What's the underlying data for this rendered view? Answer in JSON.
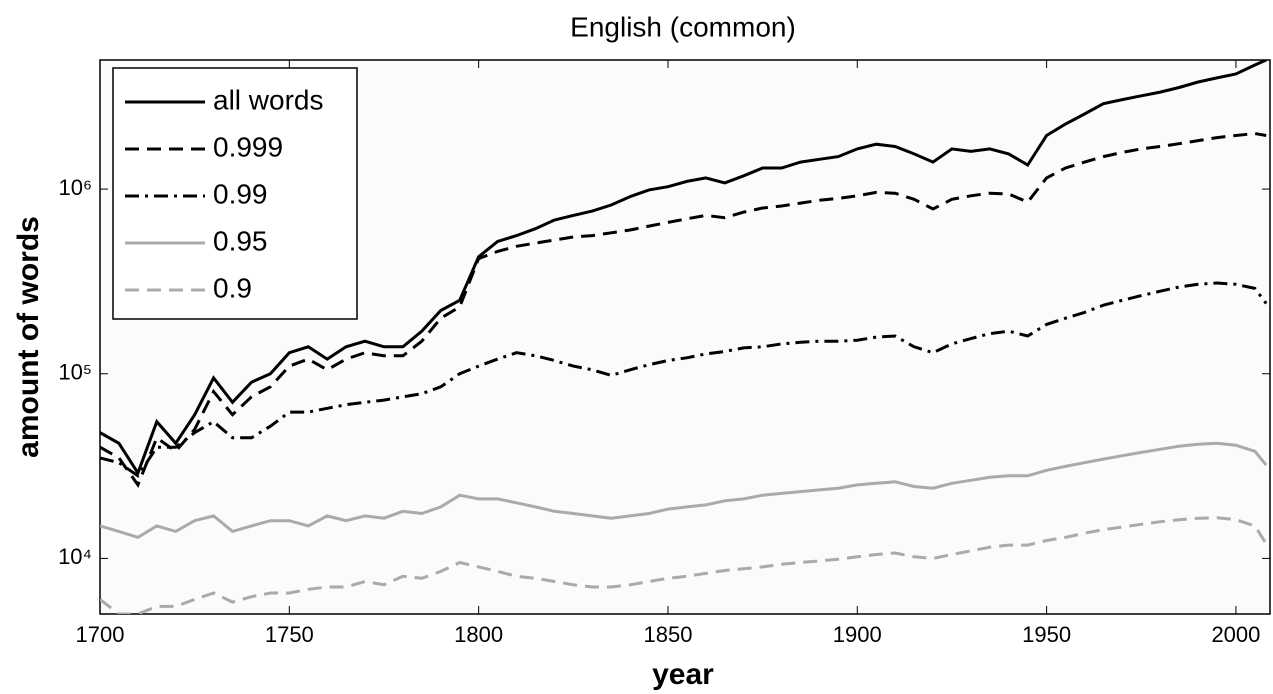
{
  "chart_data": {
    "type": "line",
    "title": "English (common)",
    "x_label": "year",
    "y_label": "amount of words",
    "log_y": true,
    "grid": false,
    "legend_position": "upper left",
    "xlim": [
      1700,
      2009
    ],
    "xticks": [
      1700,
      1750,
      1800,
      1850,
      1900,
      1950,
      2000
    ],
    "ylim": [
      5000,
      5000000
    ],
    "yticks": [
      {
        "value": 10000,
        "label": "10⁴"
      },
      {
        "value": 100000,
        "label": "10⁵"
      },
      {
        "value": 1000000,
        "label": "10⁶"
      }
    ],
    "x": [
      1700,
      1705,
      1710,
      1715,
      1720,
      1725,
      1730,
      1735,
      1740,
      1745,
      1750,
      1755,
      1760,
      1765,
      1770,
      1775,
      1780,
      1785,
      1790,
      1795,
      1800,
      1805,
      1810,
      1815,
      1820,
      1825,
      1830,
      1835,
      1840,
      1845,
      1850,
      1855,
      1860,
      1865,
      1870,
      1875,
      1880,
      1885,
      1890,
      1895,
      1900,
      1905,
      1910,
      1915,
      1920,
      1925,
      1930,
      1935,
      1940,
      1945,
      1950,
      1955,
      1960,
      1965,
      1970,
      1975,
      1980,
      1985,
      1990,
      1995,
      2000,
      2005,
      2008
    ],
    "series": [
      {
        "name": "all words",
        "color": "#000000",
        "dash": "solid",
        "values": [
          48000,
          42000,
          29000,
          55000,
          42000,
          60000,
          95000,
          70000,
          90000,
          100000,
          130000,
          140000,
          120000,
          140000,
          150000,
          140000,
          140000,
          170000,
          220000,
          250000,
          430000,
          520000,
          560000,
          610000,
          680000,
          720000,
          760000,
          820000,
          910000,
          990000,
          1030000,
          1100000,
          1150000,
          1080000,
          1180000,
          1300000,
          1300000,
          1400000,
          1450000,
          1500000,
          1650000,
          1750000,
          1700000,
          1550000,
          1400000,
          1650000,
          1600000,
          1650000,
          1550000,
          1350000,
          1950000,
          2250000,
          2550000,
          2900000,
          3050000,
          3200000,
          3350000,
          3550000,
          3800000,
          4000000,
          4200000,
          4700000,
          5000000
        ]
      },
      {
        "name": "0.999",
        "color": "#000000",
        "dash": "dashed",
        "values": [
          40000,
          35000,
          25000,
          45000,
          38000,
          50000,
          80000,
          60000,
          75000,
          85000,
          110000,
          120000,
          105000,
          120000,
          130000,
          125000,
          125000,
          150000,
          200000,
          230000,
          420000,
          460000,
          490000,
          510000,
          530000,
          550000,
          560000,
          580000,
          600000,
          630000,
          660000,
          690000,
          720000,
          700000,
          750000,
          790000,
          810000,
          840000,
          870000,
          890000,
          920000,
          960000,
          950000,
          880000,
          780000,
          880000,
          920000,
          950000,
          940000,
          850000,
          1150000,
          1300000,
          1400000,
          1500000,
          1580000,
          1650000,
          1700000,
          1760000,
          1830000,
          1900000,
          1950000,
          2000000,
          1950000
        ]
      },
      {
        "name": "0.99",
        "color": "#000000",
        "dash": "dashdot",
        "values": [
          35000,
          33000,
          28000,
          40000,
          40000,
          48000,
          55000,
          45000,
          45000,
          52000,
          62000,
          62000,
          65000,
          68000,
          70000,
          72000,
          75000,
          78000,
          85000,
          100000,
          110000,
          120000,
          130000,
          125000,
          118000,
          110000,
          105000,
          98000,
          105000,
          112000,
          118000,
          122000,
          128000,
          132000,
          138000,
          140000,
          145000,
          148000,
          150000,
          150000,
          152000,
          158000,
          160000,
          140000,
          130000,
          145000,
          155000,
          165000,
          170000,
          160000,
          185000,
          200000,
          215000,
          235000,
          250000,
          265000,
          280000,
          295000,
          305000,
          310000,
          305000,
          290000,
          240000
        ]
      },
      {
        "name": "0.95",
        "color": "#aaaaaa",
        "dash": "solid",
        "values": [
          15000,
          14000,
          13000,
          15000,
          14000,
          16000,
          17000,
          14000,
          15000,
          16000,
          16000,
          15000,
          17000,
          16000,
          17000,
          16500,
          18000,
          17500,
          19000,
          22000,
          21000,
          21000,
          20000,
          19000,
          18000,
          17500,
          17000,
          16500,
          17000,
          17500,
          18500,
          19000,
          19500,
          20500,
          21000,
          22000,
          22500,
          23000,
          23500,
          24000,
          25000,
          25500,
          26000,
          24500,
          24000,
          25500,
          26500,
          27500,
          28000,
          28000,
          30000,
          31500,
          33000,
          34500,
          36000,
          37500,
          39000,
          40500,
          41500,
          42000,
          41000,
          38000,
          32000
        ]
      },
      {
        "name": "0.9",
        "color": "#aaaaaa",
        "dash": "dashed",
        "values": [
          6000,
          5000,
          5000,
          5500,
          5500,
          6000,
          6500,
          5800,
          6200,
          6500,
          6500,
          6800,
          7000,
          7000,
          7500,
          7200,
          8000,
          7800,
          8500,
          9500,
          9000,
          8500,
          8000,
          7800,
          7500,
          7200,
          7000,
          7000,
          7200,
          7500,
          7800,
          8000,
          8300,
          8600,
          8800,
          9000,
          9300,
          9500,
          9700,
          9900,
          10200,
          10500,
          10700,
          10200,
          10000,
          10500,
          11000,
          11500,
          11800,
          11800,
          12500,
          13000,
          13700,
          14300,
          14800,
          15300,
          15800,
          16200,
          16500,
          16600,
          16200,
          15000,
          12000
        ]
      }
    ]
  }
}
